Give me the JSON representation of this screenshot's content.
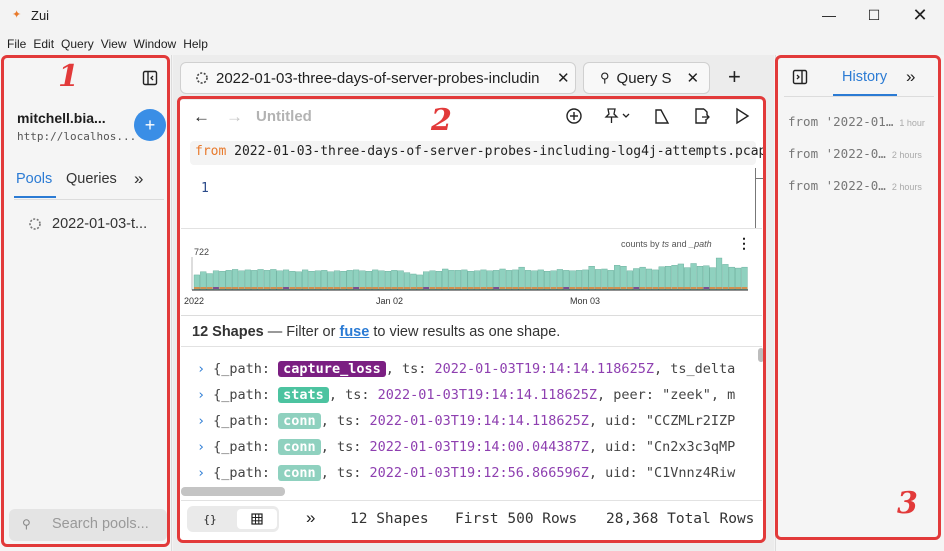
{
  "app": {
    "title": "Zui"
  },
  "menu": [
    "File",
    "Edit",
    "Query",
    "View",
    "Window",
    "Help"
  ],
  "sidebar": {
    "user": "mitchell.bia...",
    "host": "http://localhos...",
    "tabs": [
      "Pools",
      "Queries"
    ],
    "pool_item": "2022-01-03-t...",
    "search_placeholder": "Search pools..."
  },
  "tabs": [
    {
      "label": "2022-01-03-three-days-of-server-probes-includin"
    },
    {
      "label": "Query S"
    }
  ],
  "query": {
    "title": "Untitled",
    "keyword": "from",
    "source": "2022-01-03-three-days-of-server-probes-including-log4j-attempts.pcap",
    "line_number": "1"
  },
  "histogram": {
    "caption_prefix": "counts by",
    "caption_field1": "ts",
    "caption_and": "and",
    "caption_field2": "_path",
    "y_max_label": "722",
    "x_labels": [
      "2022",
      "Jan 02",
      "Mon 03"
    ]
  },
  "chart_data": {
    "type": "bar",
    "title": "counts by ts and _path",
    "y_max": 722,
    "x_labels": [
      "2022",
      "Jan 02",
      "Mon 03"
    ],
    "values": [
      330,
      400,
      360,
      420,
      410,
      430,
      450,
      420,
      440,
      430,
      450,
      430,
      450,
      420,
      440,
      410,
      400,
      440,
      410,
      420,
      430,
      400,
      420,
      410,
      430,
      440,
      420,
      410,
      440,
      420,
      410,
      430,
      420,
      380,
      350,
      330,
      400,
      420,
      410,
      460,
      430,
      430,
      440,
      410,
      420,
      440,
      420,
      430,
      460,
      430,
      440,
      500,
      430,
      420,
      440,
      410,
      420,
      450,
      430,
      420,
      430,
      440,
      520,
      450,
      460,
      430,
      540,
      520,
      420,
      470,
      500,
      460,
      440,
      510,
      520,
      540,
      570,
      490,
      580,
      520,
      530,
      490,
      700,
      560,
      500,
      480,
      500
    ]
  },
  "results": {
    "shapes_count": "12 Shapes",
    "shapes_text": "— Filter or",
    "fuse_link": "fuse",
    "shapes_suffix": "to view results as one shape.",
    "rows": [
      {
        "prefix": "{_path: ",
        "path": "capture_loss",
        "path_color": "#7b1f82",
        "mid": ", ts: ",
        "ts": "2022-01-03T19:14:14.118625Z",
        "tail": ", ts_delta"
      },
      {
        "prefix": "{_path: ",
        "path": "stats",
        "path_color": "#4cc3a0",
        "mid": ", ts: ",
        "ts": "2022-01-03T19:14:14.118625Z",
        "tail": ", peer: \"zeek\", m"
      },
      {
        "prefix": "{_path: ",
        "path": "conn",
        "path_color": "#8fd1bf",
        "mid": ", ts: ",
        "ts": "2022-01-03T19:14:14.118625Z",
        "tail": ", uid: \"CCZMLr2IZP"
      },
      {
        "prefix": "{_path: ",
        "path": "conn",
        "path_color": "#8fd1bf",
        "mid": ", ts: ",
        "ts": "2022-01-03T19:14:00.044387Z",
        "tail": ", uid: \"Cn2x3c3qMP"
      },
      {
        "prefix": "{_path: ",
        "path": "conn",
        "path_color": "#8fd1bf",
        "mid": ", ts: ",
        "ts": "2022-01-03T19:12:56.866596Z",
        "tail": ", uid: \"C1Vnnz4Riw"
      }
    ]
  },
  "statusbar": {
    "shapes": "12 Shapes",
    "first": "First 500 Rows",
    "total": "28,368 Total Rows"
  },
  "history": {
    "tab": "History",
    "items": [
      {
        "query": "from '2022-01…",
        "time": "1 hour"
      },
      {
        "query": "from '2022-0…",
        "time": "2 hours"
      },
      {
        "query": "from '2022-0…",
        "time": "2 hours"
      }
    ]
  },
  "markers": [
    "1",
    "2",
    "3"
  ],
  "colors": {
    "accent": "#2b7bd4",
    "annotation": "#e23a3a"
  }
}
